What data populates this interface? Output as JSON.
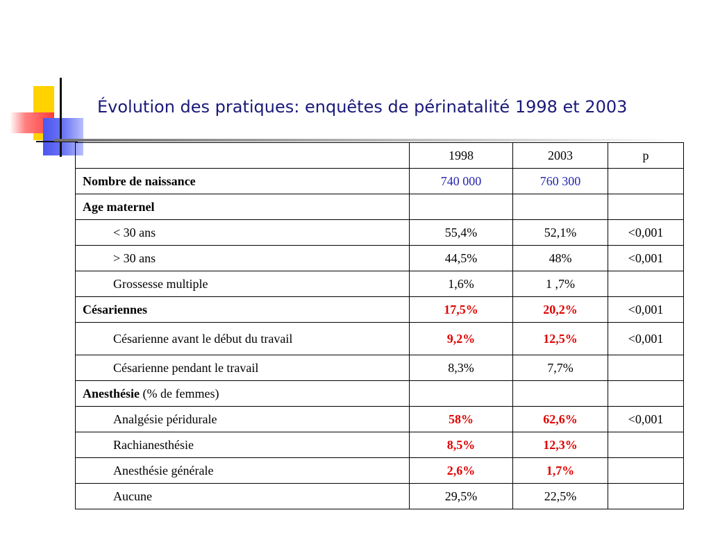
{
  "title": "Évolution des pratiques: enquêtes de périnatalité 1998 et 2003",
  "table": {
    "headers": [
      "",
      "1998",
      "2003",
      "p"
    ],
    "rows": [
      {
        "label": "Nombre de naissance",
        "v1998": "740 000",
        "v2003": "760 300",
        "p": ""
      },
      {
        "label": "Age maternel",
        "v1998": "",
        "v2003": "",
        "p": ""
      },
      {
        "label": "< 30 ans",
        "v1998": "55,4%",
        "v2003": "52,1%",
        "p": "<0,001"
      },
      {
        "label": "> 30 ans",
        "v1998": "44,5%",
        "v2003": "48%",
        "p": "<0,001"
      },
      {
        "label": "Grossesse multiple",
        "v1998": "1,6%",
        "v2003": "1 ,7%",
        "p": ""
      },
      {
        "label": "Césariennes",
        "v1998": "17,5%",
        "v2003": "20,2%",
        "p": "<0,001"
      },
      {
        "label": "Césarienne avant le début du travail",
        "v1998": "9,2%",
        "v2003": "12,5%",
        "p": "<0,001"
      },
      {
        "label": "Césarienne pendant le travail",
        "v1998": "8,3%",
        "v2003": "7,7%",
        "p": ""
      },
      {
        "label": "Anesthésie",
        "label_suffix": " (% de femmes)",
        "v1998": "",
        "v2003": "",
        "p": ""
      },
      {
        "label": "Analgésie péridurale",
        "v1998": "58%",
        "v2003": "62,6%",
        "p": "<0,001"
      },
      {
        "label": "Rachianesthésie",
        "v1998": "8,5%",
        "v2003": "12,3%",
        "p": ""
      },
      {
        "label": "Anesthésie générale",
        "v1998": "2,6%",
        "v2003": "1,7%",
        "p": ""
      },
      {
        "label": "Aucune",
        "v1998": "29,5%",
        "v2003": "22,5%",
        "p": ""
      }
    ]
  },
  "colors": {
    "title": "#1a1a7a",
    "highlight_blue": "#2424b0",
    "highlight_red": "#e00000"
  }
}
